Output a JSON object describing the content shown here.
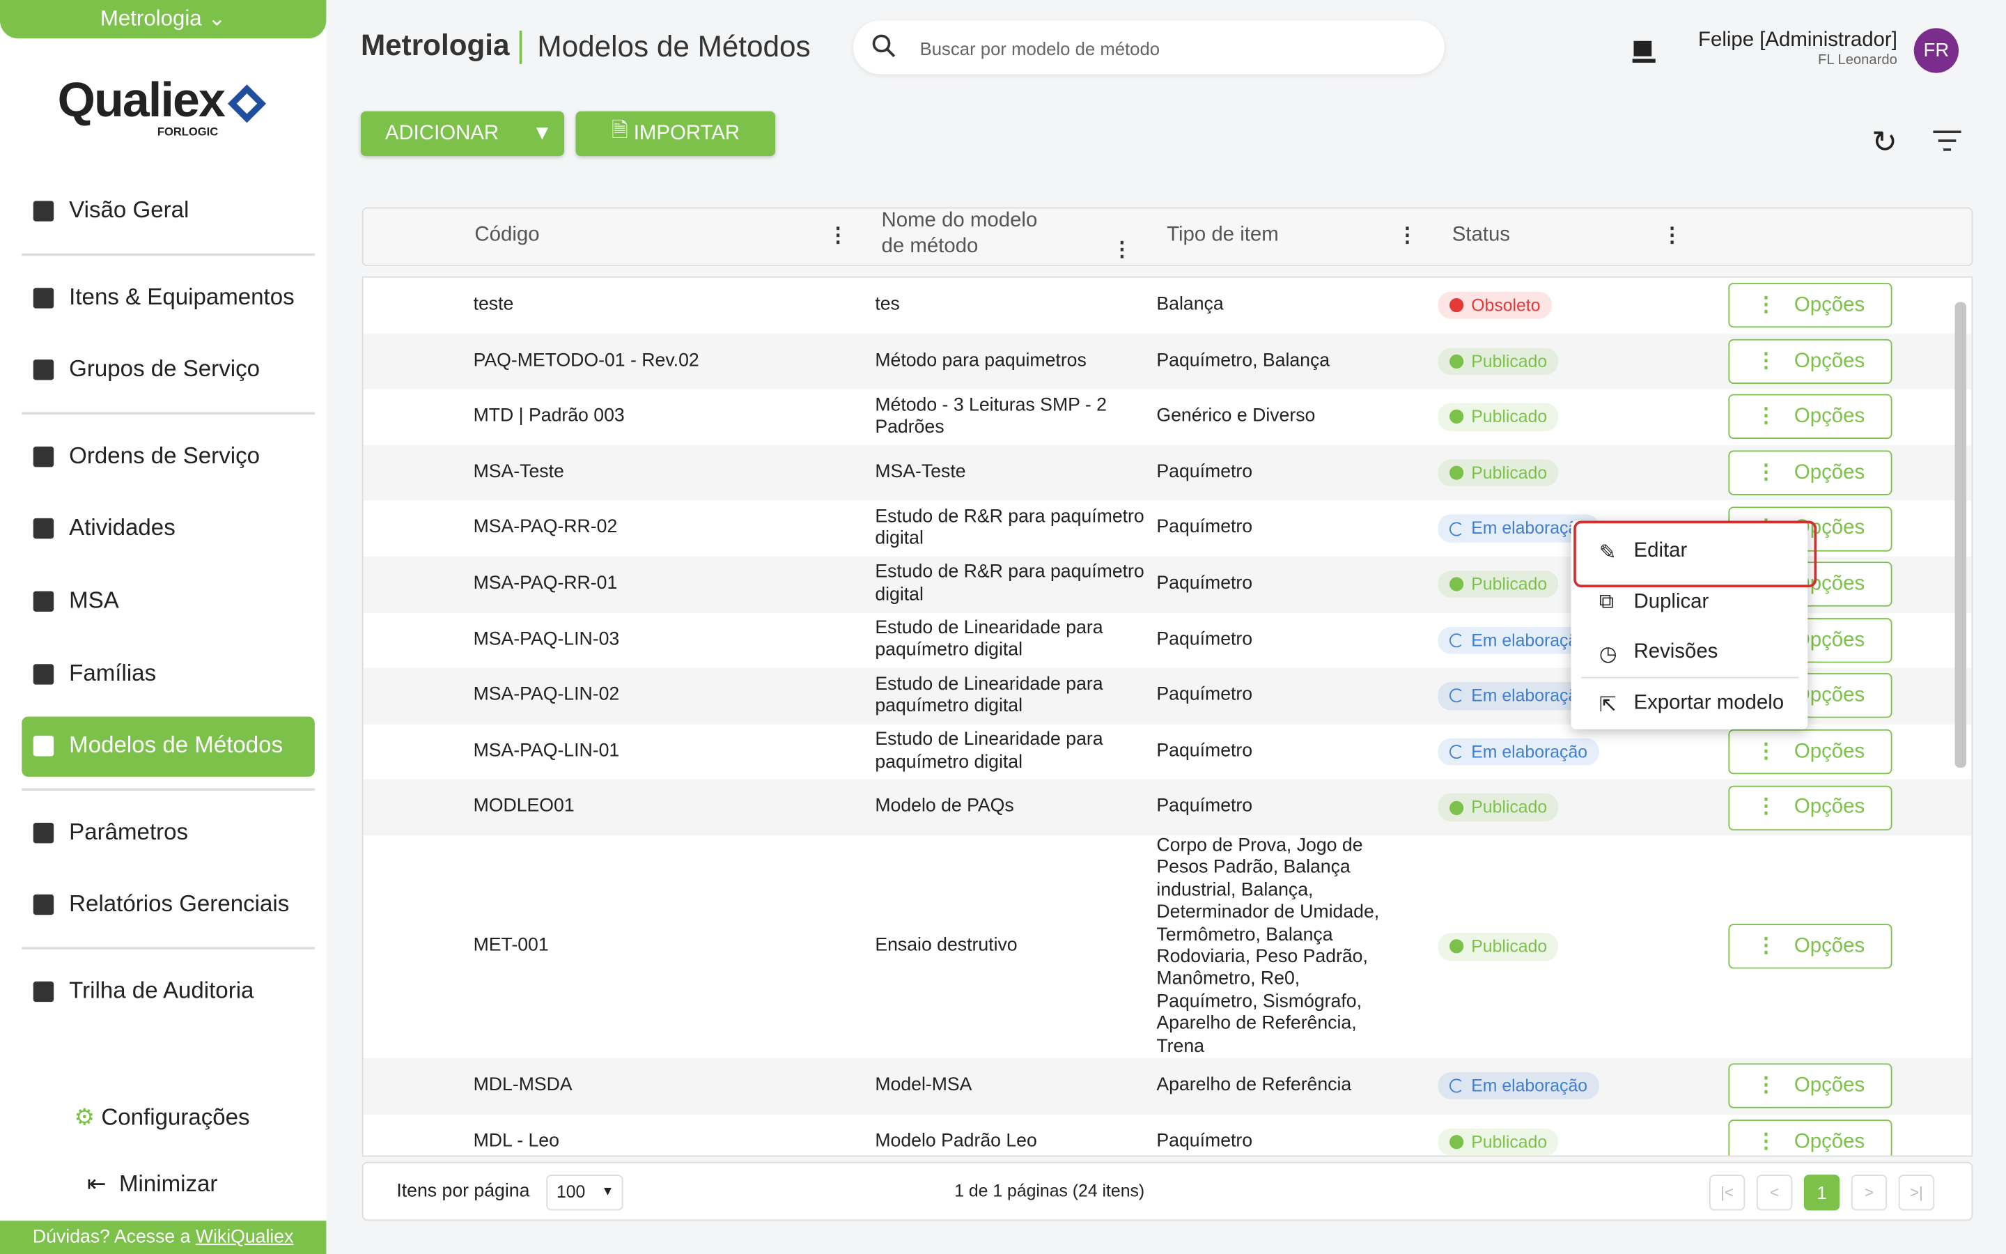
{
  "sidebar": {
    "module": "Metrologia",
    "logo": "Qualiex",
    "logo_sub": "FORLOGIC",
    "menu": [
      "Visão Geral",
      "Itens & Equipamentos",
      "Grupos de Serviço",
      "Ordens de Serviço",
      "Atividades",
      "MSA",
      "Famílias",
      "Modelos de Métodos",
      "Parâmetros",
      "Relatórios Gerenciais",
      "Trilha de Auditoria"
    ],
    "settings": "Configurações",
    "minimize": "Minimizar",
    "help_text": "Dúvidas? Acesse a",
    "help_link": "WikiQualiex"
  },
  "header": {
    "breadcrumb_root": "Metrologia",
    "title": "Modelos de Métodos",
    "search_placeholder": "Buscar por modelo de método",
    "user_name": "Felipe [Administrador]",
    "user_company": "FL Leonardo",
    "avatar": "FR"
  },
  "toolbar": {
    "add": "ADICIONAR",
    "import": "IMPORTAR"
  },
  "table": {
    "columns": [
      "Código",
      "Nome do modelo de método",
      "Tipo de item",
      "Status"
    ],
    "options_label": "Opções",
    "rows": [
      {
        "code": "teste",
        "name": "tes",
        "type": "Balança",
        "status": "Obsoleto",
        "status_color": "#e53935"
      },
      {
        "code": "PAQ-METODO-01 - Rev.02",
        "name": "Método para paquimetros",
        "type": "Paquímetro, Balança",
        "status": "Publicado",
        "status_color": "#7cc24a"
      },
      {
        "code": "MTD | Padrão 003",
        "name": "Método - 3 Leituras SMP - 2 Padrões",
        "type": "Genérico e Diverso",
        "status": "Publicado",
        "status_color": "#7cc24a"
      },
      {
        "code": "MSA-Teste",
        "name": "MSA-Teste",
        "type": "Paquímetro",
        "status": "Publicado",
        "status_color": "#7cc24a"
      },
      {
        "code": "MSA-PAQ-RR-02",
        "name": "Estudo de R&R para paquímetro digital",
        "type": "Paquímetro",
        "status": "Em elaboração",
        "status_color": "#3f7fd0"
      },
      {
        "code": "MSA-PAQ-RR-01",
        "name": "Estudo de R&R para paquímetro digital",
        "type": "Paquímetro",
        "status": "Publicado",
        "status_color": "#7cc24a"
      },
      {
        "code": "MSA-PAQ-LIN-03",
        "name": "Estudo de Linearidade para paquímetro digital",
        "type": "Paquímetro",
        "status": "Em elaboração",
        "status_color": "#3f7fd0"
      },
      {
        "code": "MSA-PAQ-LIN-02",
        "name": "Estudo de Linearidade para paquímetro digital",
        "type": "Paquímetro",
        "status": "Em elaboração",
        "status_color": "#3f7fd0"
      },
      {
        "code": "MSA-PAQ-LIN-01",
        "name": "Estudo de Linearidade para paquímetro digital",
        "type": "Paquímetro",
        "status": "Em elaboração",
        "status_color": "#3f7fd0"
      },
      {
        "code": "MODLEO01",
        "name": "Modelo de PAQs",
        "type": "Paquímetro",
        "status": "Publicado",
        "status_color": "#7cc24a"
      },
      {
        "code": "MET-001",
        "name": "Ensaio destrutivo",
        "type": "Corpo de Prova, Jogo de Pesos Padrão, Balança industrial, Balança, Determinador de Umidade, Termômetro, Balança Rodoviaria, Peso Padrão, Manômetro, Re0, Paquímetro, Sismógrafo, Aparelho de Referência, Trena",
        "status": "Publicado",
        "status_color": "#7cc24a"
      },
      {
        "code": "MDL-MSDA",
        "name": "Model-MSA",
        "type": "Aparelho de Referência",
        "status": "Em elaboração",
        "status_color": "#3f7fd0"
      },
      {
        "code": "MDL - Leo",
        "name": "Modelo Padrão Leo",
        "type": "Paquímetro",
        "status": "Publicado",
        "status_color": "#7cc24a"
      }
    ]
  },
  "context_menu": [
    "Editar",
    "Duplicar",
    "Revisões",
    "Exportar modelo"
  ],
  "pagination": {
    "per_page_label": "Itens por página",
    "per_page": 100,
    "summary": "1 de 1 páginas (24 itens)",
    "current_page": 1
  }
}
